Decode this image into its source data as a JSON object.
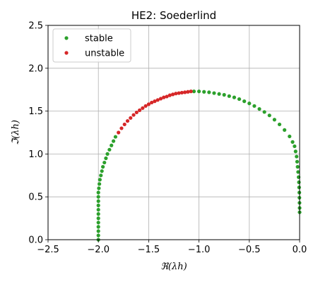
{
  "chart_data": {
    "type": "scatter",
    "title": "HE2: Soederlind",
    "xlabel": "ℜ(λh)",
    "ylabel": "ℑ(λh)",
    "xlim": [
      -2.5,
      0.0
    ],
    "ylim": [
      0.0,
      2.5
    ],
    "xticks": [
      -2.5,
      -2.0,
      -1.5,
      -1.0,
      -0.5,
      0.0
    ],
    "yticks": [
      0.0,
      0.5,
      1.0,
      1.5,
      2.0,
      2.5
    ],
    "xtick_labels": [
      "−2.5",
      "−2.0",
      "−1.5",
      "−1.0",
      "−0.5",
      "0.0"
    ],
    "ytick_labels": [
      "0.0",
      "0.5",
      "1.0",
      "1.5",
      "2.0",
      "2.5"
    ],
    "grid": true,
    "legend_position": "top-left",
    "series": [
      {
        "name": "stable",
        "color": "#2ca02c",
        "points": [
          [
            -2.0,
            0.0
          ],
          [
            -2.0,
            0.05
          ],
          [
            -2.0,
            0.1
          ],
          [
            -2.0,
            0.15
          ],
          [
            -2.0,
            0.2
          ],
          [
            -2.0,
            0.25
          ],
          [
            -2.0,
            0.3
          ],
          [
            -2.0,
            0.35
          ],
          [
            -2.0,
            0.4
          ],
          [
            -2.0,
            0.45
          ],
          [
            -2.0,
            0.5
          ],
          [
            -2.0,
            0.55
          ],
          [
            -1.995,
            0.6
          ],
          [
            -1.99,
            0.65
          ],
          [
            -1.985,
            0.7
          ],
          [
            -1.975,
            0.75
          ],
          [
            -1.965,
            0.8
          ],
          [
            -1.955,
            0.85
          ],
          [
            -1.94,
            0.9
          ],
          [
            -1.925,
            0.95
          ],
          [
            -1.91,
            1.0
          ],
          [
            -1.89,
            1.05
          ],
          [
            -1.87,
            1.1
          ],
          [
            -1.85,
            1.15
          ],
          [
            -1.83,
            1.2
          ],
          [
            -1.05,
            1.73
          ],
          [
            -1.0,
            1.73
          ],
          [
            -0.95,
            1.725
          ],
          [
            -0.9,
            1.72
          ],
          [
            -0.85,
            1.71
          ],
          [
            -0.8,
            1.7
          ],
          [
            -0.75,
            1.69
          ],
          [
            -0.7,
            1.675
          ],
          [
            -0.65,
            1.66
          ],
          [
            -0.6,
            1.64
          ],
          [
            -0.55,
            1.615
          ],
          [
            -0.5,
            1.59
          ],
          [
            -0.45,
            1.56
          ],
          [
            -0.4,
            1.525
          ],
          [
            -0.35,
            1.49
          ],
          [
            -0.3,
            1.45
          ],
          [
            -0.25,
            1.4
          ],
          [
            -0.2,
            1.345
          ],
          [
            -0.15,
            1.28
          ],
          [
            -0.1,
            1.205
          ],
          [
            -0.07,
            1.14
          ],
          [
            -0.05,
            1.09
          ],
          [
            -0.04,
            1.03
          ],
          [
            -0.03,
            0.97
          ],
          [
            -0.025,
            0.91
          ],
          [
            -0.02,
            0.85
          ],
          [
            -0.015,
            0.79
          ],
          [
            -0.01,
            0.73
          ],
          [
            -0.007,
            0.67
          ],
          [
            -0.005,
            0.61
          ],
          [
            -0.003,
            0.55
          ],
          [
            -0.002,
            0.49
          ],
          [
            -0.001,
            0.43
          ],
          [
            0.0,
            0.37
          ],
          [
            0.0,
            0.32
          ]
        ]
      },
      {
        "name": "unstable",
        "color": "#d62728",
        "points": [
          [
            -1.8,
            1.25
          ],
          [
            -1.77,
            1.3
          ],
          [
            -1.74,
            1.345
          ],
          [
            -1.71,
            1.385
          ],
          [
            -1.68,
            1.42
          ],
          [
            -1.65,
            1.455
          ],
          [
            -1.62,
            1.485
          ],
          [
            -1.59,
            1.51
          ],
          [
            -1.56,
            1.535
          ],
          [
            -1.53,
            1.56
          ],
          [
            -1.5,
            1.58
          ],
          [
            -1.47,
            1.6
          ],
          [
            -1.44,
            1.615
          ],
          [
            -1.41,
            1.63
          ],
          [
            -1.38,
            1.645
          ],
          [
            -1.35,
            1.66
          ],
          [
            -1.32,
            1.67
          ],
          [
            -1.29,
            1.685
          ],
          [
            -1.26,
            1.695
          ],
          [
            -1.23,
            1.705
          ],
          [
            -1.2,
            1.71
          ],
          [
            -1.17,
            1.715
          ],
          [
            -1.14,
            1.72
          ],
          [
            -1.11,
            1.725
          ],
          [
            -1.08,
            1.73
          ]
        ]
      }
    ]
  }
}
